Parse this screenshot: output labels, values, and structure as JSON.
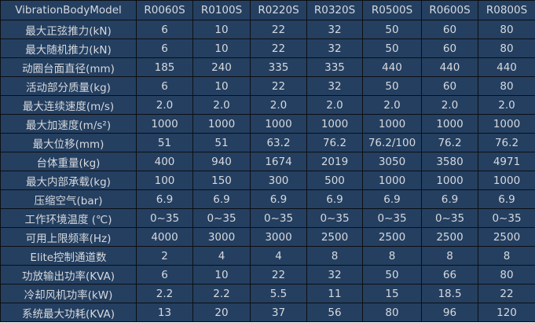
{
  "header": [
    "VibrationBodyModel",
    "R0060S",
    "R0100S",
    "R0220S",
    "R0320S",
    "R0500S",
    "R0600S",
    "R0800S"
  ],
  "rows": [
    [
      "最大正弦推力(kN)",
      "6",
      "10",
      "22",
      "32",
      "50",
      "60",
      "80"
    ],
    [
      "最大随机推力(kN)",
      "6",
      "10",
      "22",
      "32",
      "50",
      "60",
      "80"
    ],
    [
      "动圈台面直径(mm)",
      "185",
      "240",
      "335",
      "335",
      "440",
      "440",
      "440"
    ],
    [
      "活动部分质量(kg)",
      "6",
      "10",
      "22",
      "32",
      "50",
      "60",
      "80"
    ],
    [
      "最大连续速度(m/s)",
      "2.0",
      "2.0",
      "2.0",
      "2.0",
      "2.0",
      "2.0",
      "2.0"
    ],
    [
      "最大加速度(m/s²)",
      "1000",
      "1000",
      "1000",
      "1000",
      "1000",
      "1000",
      "1000"
    ],
    [
      "最大位移(mm)",
      "51",
      "51",
      "63.2",
      "76.2",
      "76.2/100",
      "76.2",
      "76.2"
    ],
    [
      "台体重量(kg)",
      "400",
      "940",
      "1674",
      "2019",
      "3050",
      "3580",
      "4971"
    ],
    [
      "最大内部承载(kg)",
      "100",
      "150",
      "300",
      "500",
      "1000",
      "1000",
      "1000"
    ],
    [
      "压缩空气(bar)",
      "6.9",
      "6.9",
      "6.9",
      "6.9",
      "6.9",
      "6.9",
      "6.9"
    ],
    [
      "工作环境温度 (℃)",
      "0~35",
      "0~35",
      "0~35",
      "0~35",
      "0~35",
      "0~35",
      "0~35"
    ],
    [
      "可用上限频率(Hz)",
      "4000",
      "3000",
      "3000",
      "2500",
      "2500",
      "2500",
      "2500"
    ],
    [
      "Elite控制通道数",
      "2",
      "4",
      "4",
      "8",
      "8",
      "8",
      "8"
    ],
    [
      "功放输出功率(KVA)",
      "6",
      "10",
      "22",
      "32",
      "50",
      "66",
      "80"
    ],
    [
      "冷却风机功率(kW)",
      "2.2",
      "2.2",
      "5.5",
      "11",
      "15",
      "18.5",
      "22"
    ],
    [
      "系统最大功耗(KVA)",
      "13",
      "20",
      "37",
      "56",
      "80",
      "96",
      "120"
    ]
  ]
}
